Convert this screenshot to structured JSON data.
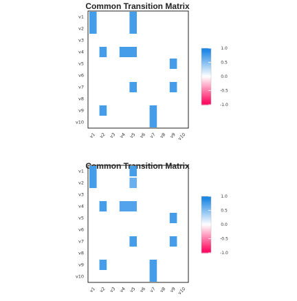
{
  "chart_data": [
    {
      "type": "heatmap",
      "title": "Common Transition Matrix",
      "xlabel": "",
      "ylabel": "",
      "row_labels": [
        "v1",
        "v2",
        "v3",
        "v4",
        "v5",
        "v6",
        "v7",
        "v8",
        "v9",
        "v10"
      ],
      "col_labels": [
        "v1",
        "v2",
        "v3",
        "v4",
        "v5",
        "v6",
        "v7",
        "v8",
        "v9",
        "v10"
      ],
      "cells": [
        {
          "row": 1,
          "col": 1,
          "row_span": 2,
          "value": 0.75
        },
        {
          "row": 1,
          "col": 5,
          "row_span": 2,
          "value": 0.75
        },
        {
          "row": 4,
          "col": 2,
          "row_span": 1,
          "value": 0.75
        },
        {
          "row": 4,
          "col": 4,
          "row_span": 1,
          "col_span": 2,
          "value": 0.75
        },
        {
          "row": 5,
          "col": 9,
          "row_span": 1,
          "value": 0.75
        },
        {
          "row": 7,
          "col": 5,
          "row_span": 1,
          "value": 0.75
        },
        {
          "row": 7,
          "col": 9,
          "row_span": 1,
          "value": 0.75
        },
        {
          "row": 9,
          "col": 2,
          "row_span": 1,
          "value": 0.75
        },
        {
          "row": 9,
          "col": 7,
          "row_span": 2,
          "value": 0.75
        }
      ],
      "colorbar": {
        "ticks": [
          "1.0",
          "0.5",
          "0.0",
          "-0.5",
          "-1.0"
        ],
        "range": [
          -1,
          1
        ]
      },
      "grid": false
    },
    {
      "type": "heatmap",
      "title": "Common Transition Matrix",
      "xlabel": "",
      "ylabel": "",
      "row_labels": [
        "v1",
        "v2",
        "v3",
        "v4",
        "v5",
        "v6",
        "v7",
        "v8",
        "v9",
        "v10"
      ],
      "col_labels": [
        "v1",
        "v2",
        "v3",
        "v4",
        "v5",
        "v6",
        "v7",
        "v8",
        "v9",
        "v10"
      ],
      "cells": [
        {
          "row": 1,
          "col": 1,
          "row_span": 2,
          "value": 0.75
        },
        {
          "row": 1,
          "col": 5,
          "row_span": 1,
          "value": 0.75
        },
        {
          "row": 2,
          "col": 5,
          "row_span": 1,
          "value": 0.6
        },
        {
          "row": 4,
          "col": 2,
          "row_span": 1,
          "value": 0.75
        },
        {
          "row": 4,
          "col": 4,
          "row_span": 1,
          "col_span": 2,
          "value": 0.7
        },
        {
          "row": 5,
          "col": 9,
          "row_span": 1,
          "value": 0.75
        },
        {
          "row": 7,
          "col": 5,
          "row_span": 1,
          "value": 0.75
        },
        {
          "row": 7,
          "col": 9,
          "row_span": 1,
          "value": 0.75
        },
        {
          "row": 9,
          "col": 2,
          "row_span": 1,
          "value": 0.75
        },
        {
          "row": 9,
          "col": 7,
          "row_span": 2,
          "value": 0.75
        }
      ],
      "colorbar": {
        "ticks": [
          "1.0",
          "0.5",
          "0.0",
          "-0.5",
          "-1.0"
        ],
        "range": [
          -1,
          1
        ]
      },
      "grid": false
    }
  ]
}
